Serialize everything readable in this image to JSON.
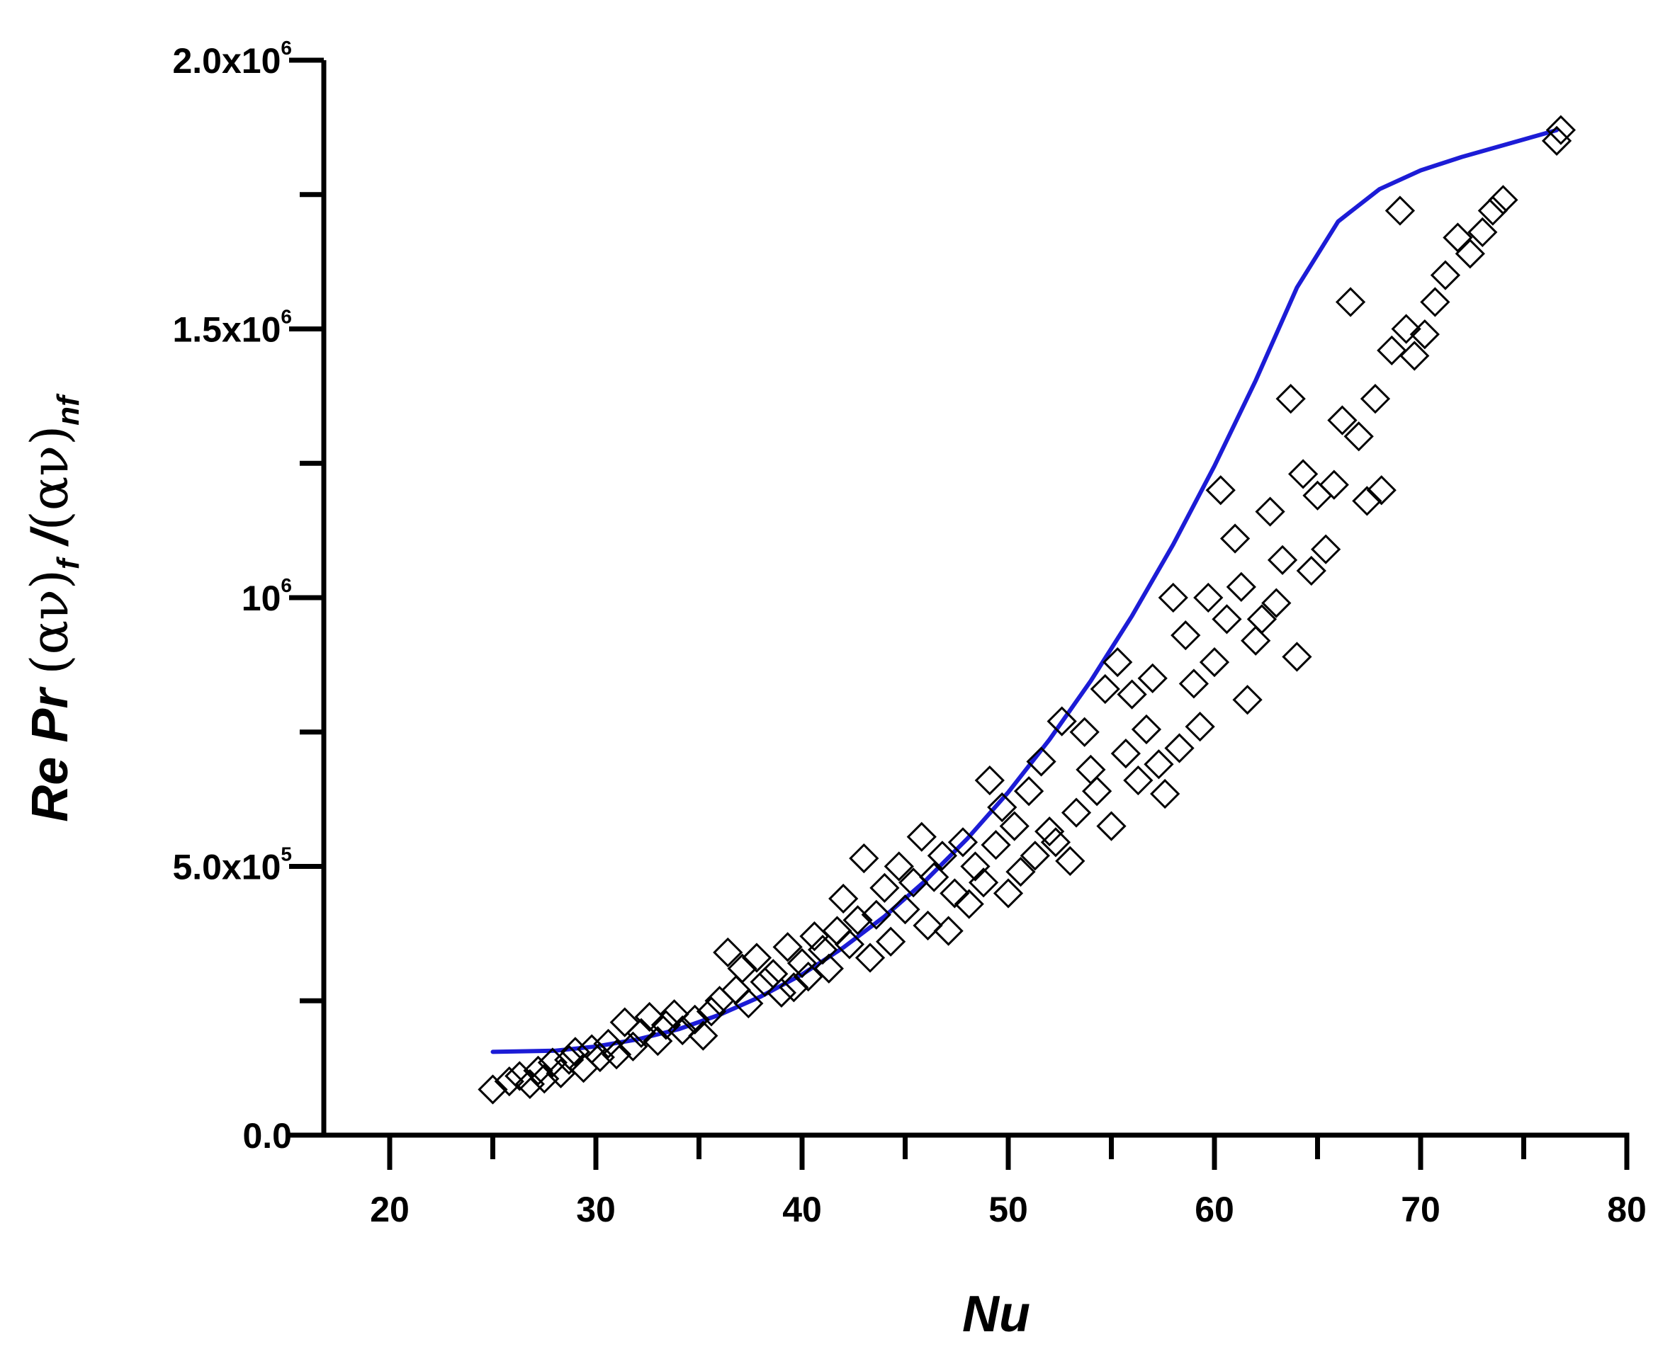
{
  "chart_data": {
    "type": "scatter",
    "xlabel": "Nu",
    "ylabel": {
      "parts": [
        {
          "text": "Re Pr ",
          "style": "italic"
        },
        {
          "text": "(αν)",
          "style": "greek"
        },
        {
          "text": "f",
          "style": "sub"
        },
        {
          "text": " /",
          "style": "italic"
        },
        {
          "text": "(αν)",
          "style": "greek"
        },
        {
          "text": "nf",
          "style": "sub"
        }
      ]
    },
    "xlim": [
      20,
      80
    ],
    "ylim": [
      0,
      2000000
    ],
    "x_major_ticks": [
      20,
      30,
      40,
      50,
      60,
      70,
      80
    ],
    "x_minor_ticks": [
      25,
      35,
      45,
      55,
      65,
      75
    ],
    "y_major_ticks": [
      0,
      500000,
      1000000,
      1500000,
      2000000
    ],
    "y_minor_ticks": [
      250000,
      750000,
      1250000,
      1750000
    ],
    "x_tick_labels": [
      "20",
      "30",
      "40",
      "50",
      "60",
      "70",
      "80"
    ],
    "y_tick_labels": [
      {
        "value": 0,
        "mantissa": "0.0",
        "exp": ""
      },
      {
        "value": 500000,
        "mantissa": "5.0x10",
        "exp": "5"
      },
      {
        "value": 1000000,
        "mantissa": "10",
        "exp": "6"
      },
      {
        "value": 1500000,
        "mantissa": "1.5x10",
        "exp": "6"
      },
      {
        "value": 2000000,
        "mantissa": "2.0x10",
        "exp": "6"
      }
    ],
    "grid": false,
    "series": [
      {
        "kind": "scatter",
        "marker": "open-diamond",
        "color": "#000000",
        "points": [
          [
            25,
            85000
          ],
          [
            25.8,
            100000
          ],
          [
            26.3,
            110000
          ],
          [
            26.8,
            95000
          ],
          [
            27.2,
            120000
          ],
          [
            27.5,
            105000
          ],
          [
            27.9,
            135000
          ],
          [
            28.3,
            115000
          ],
          [
            28.7,
            140000
          ],
          [
            29.0,
            155000
          ],
          [
            29.4,
            125000
          ],
          [
            29.8,
            160000
          ],
          [
            30.2,
            145000
          ],
          [
            30.6,
            170000
          ],
          [
            31.0,
            150000
          ],
          [
            31.4,
            210000
          ],
          [
            31.8,
            165000
          ],
          [
            32.2,
            190000
          ],
          [
            32.6,
            220000
          ],
          [
            33.0,
            175000
          ],
          [
            33.4,
            205000
          ],
          [
            33.8,
            225000
          ],
          [
            34.2,
            195000
          ],
          [
            34.8,
            215000
          ],
          [
            35.2,
            185000
          ],
          [
            35.6,
            230000
          ],
          [
            36.0,
            250000
          ],
          [
            36.4,
            340000
          ],
          [
            36.8,
            270000
          ],
          [
            37.1,
            310000
          ],
          [
            37.4,
            245000
          ],
          [
            37.8,
            330000
          ],
          [
            38.2,
            285000
          ],
          [
            38.6,
            300000
          ],
          [
            39.0,
            265000
          ],
          [
            39.3,
            350000
          ],
          [
            39.6,
            275000
          ],
          [
            40.0,
            320000
          ],
          [
            40.3,
            295000
          ],
          [
            40.6,
            370000
          ],
          [
            41.0,
            345000
          ],
          [
            41.3,
            310000
          ],
          [
            41.7,
            380000
          ],
          [
            42.0,
            440000
          ],
          [
            42.3,
            355000
          ],
          [
            42.7,
            400000
          ],
          [
            43.0,
            515000
          ],
          [
            43.3,
            330000
          ],
          [
            43.6,
            410000
          ],
          [
            44.0,
            460000
          ],
          [
            44.3,
            360000
          ],
          [
            44.7,
            500000
          ],
          [
            45.0,
            420000
          ],
          [
            45.4,
            470000
          ],
          [
            45.8,
            555000
          ],
          [
            46.1,
            390000
          ],
          [
            46.4,
            480000
          ],
          [
            46.8,
            520000
          ],
          [
            47.1,
            380000
          ],
          [
            47.4,
            450000
          ],
          [
            47.8,
            545000
          ],
          [
            48.1,
            430000
          ],
          [
            48.4,
            500000
          ],
          [
            48.8,
            470000
          ],
          [
            49.1,
            660000
          ],
          [
            49.4,
            540000
          ],
          [
            49.7,
            610000
          ],
          [
            50.0,
            450000
          ],
          [
            50.3,
            575000
          ],
          [
            50.6,
            490000
          ],
          [
            51.0,
            640000
          ],
          [
            51.3,
            520000
          ],
          [
            51.6,
            695000
          ],
          [
            52.0,
            565000
          ],
          [
            52.3,
            545000
          ],
          [
            52.6,
            770000
          ],
          [
            53.0,
            510000
          ],
          [
            53.3,
            600000
          ],
          [
            53.7,
            750000
          ],
          [
            54.0,
            680000
          ],
          [
            54.3,
            640000
          ],
          [
            54.7,
            830000
          ],
          [
            55.0,
            575000
          ],
          [
            55.3,
            880000
          ],
          [
            55.7,
            710000
          ],
          [
            56.0,
            820000
          ],
          [
            56.3,
            660000
          ],
          [
            56.7,
            755000
          ],
          [
            57.0,
            850000
          ],
          [
            57.3,
            690000
          ],
          [
            57.6,
            635000
          ],
          [
            58.0,
            1000000
          ],
          [
            58.3,
            720000
          ],
          [
            58.6,
            930000
          ],
          [
            59.0,
            840000
          ],
          [
            59.3,
            760000
          ],
          [
            59.7,
            1000000
          ],
          [
            60.0,
            880000
          ],
          [
            60.3,
            1200000
          ],
          [
            60.6,
            960000
          ],
          [
            61.0,
            1110000
          ],
          [
            61.3,
            1020000
          ],
          [
            61.6,
            810000
          ],
          [
            62.0,
            920000
          ],
          [
            62.3,
            960000
          ],
          [
            62.7,
            1160000
          ],
          [
            63.0,
            990000
          ],
          [
            63.3,
            1070000
          ],
          [
            63.7,
            1370000
          ],
          [
            64.0,
            890000
          ],
          [
            64.3,
            1230000
          ],
          [
            64.7,
            1050000
          ],
          [
            65.0,
            1190000
          ],
          [
            65.4,
            1090000
          ],
          [
            65.8,
            1210000
          ],
          [
            66.2,
            1330000
          ],
          [
            66.6,
            1550000
          ],
          [
            67.0,
            1300000
          ],
          [
            67.4,
            1180000
          ],
          [
            67.8,
            1370000
          ],
          [
            68.1,
            1200000
          ],
          [
            68.6,
            1460000
          ],
          [
            69.0,
            1720000
          ],
          [
            69.3,
            1500000
          ],
          [
            69.7,
            1450000
          ],
          [
            70.2,
            1490000
          ],
          [
            70.7,
            1550000
          ],
          [
            71.2,
            1600000
          ],
          [
            71.8,
            1670000
          ],
          [
            72.4,
            1640000
          ],
          [
            73.0,
            1680000
          ],
          [
            73.5,
            1720000
          ],
          [
            74.0,
            1740000
          ],
          [
            76.6,
            1850000
          ],
          [
            76.8,
            1870000
          ]
        ]
      },
      {
        "kind": "line",
        "fit": "polynomial",
        "color": "#1c1cd6",
        "x_range": [
          25,
          76.6
        ],
        "points": [
          [
            25,
            155000
          ],
          [
            28,
            157000
          ],
          [
            30,
            165000
          ],
          [
            32,
            178000
          ],
          [
            34,
            197000
          ],
          [
            36,
            224000
          ],
          [
            38,
            258000
          ],
          [
            40,
            299000
          ],
          [
            42,
            349000
          ],
          [
            44,
            407000
          ],
          [
            46,
            474000
          ],
          [
            48,
            551000
          ],
          [
            50,
            638000
          ],
          [
            52,
            736000
          ],
          [
            54,
            845000
          ],
          [
            56,
            966000
          ],
          [
            58,
            1099000
          ],
          [
            60,
            1245000
          ],
          [
            62,
            1404000
          ],
          [
            64,
            1577000
          ],
          [
            66,
            1700000
          ],
          [
            68,
            1760000
          ],
          [
            70,
            1795000
          ],
          [
            72,
            1820000
          ],
          [
            76.6,
            1870000
          ]
        ]
      }
    ]
  }
}
